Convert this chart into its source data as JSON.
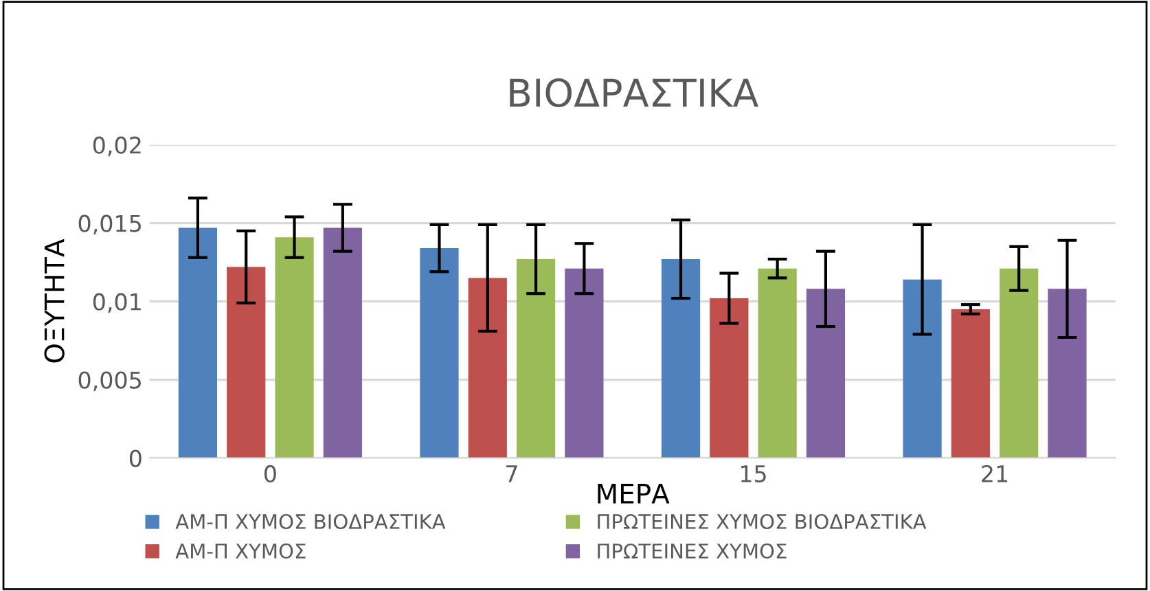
{
  "chart_data": {
    "type": "bar",
    "title": "ΒΙΟΔΡΑΣΤΙΚΑ",
    "xlabel": "ΜΕΡΑ",
    "ylabel": "ΟΞΥΤΗΤΑ",
    "categories": [
      "0",
      "7",
      "15",
      "21"
    ],
    "series": [
      {
        "name": "ΑΜ-Π ΧΥΜΟΣ ΒΙΟΔΡΑΣΤΙΚΑ",
        "color": "#4f81bd",
        "values": [
          0.0147,
          0.0134,
          0.0127,
          0.0114
        ],
        "errors": [
          0.0019,
          0.0015,
          0.0025,
          0.0035
        ]
      },
      {
        "name": "ΑΜ-Π ΧΥΜΟΣ",
        "color": "#c0504d",
        "values": [
          0.0122,
          0.0115,
          0.0102,
          0.0095
        ],
        "errors": [
          0.0023,
          0.0034,
          0.0016,
          0.0003
        ]
      },
      {
        "name": "ΠΡΩΤΕΙΝΕΣ ΧΥΜΟΣ ΒΙΟΔΡΑΣΤΙΚΑ",
        "color": "#9bbb59",
        "values": [
          0.0141,
          0.0127,
          0.0121,
          0.0121
        ],
        "errors": [
          0.0013,
          0.0022,
          0.0006,
          0.0014
        ]
      },
      {
        "name": "ΠΡΩΤΕΙΝΕΣ ΧΥΜΟΣ",
        "color": "#8064a2",
        "values": [
          0.0147,
          0.0121,
          0.0108,
          0.0108
        ],
        "errors": [
          0.0015,
          0.0016,
          0.0024,
          0.0031
        ]
      }
    ],
    "ylim": [
      0,
      0.02
    ],
    "yticks": [
      0,
      {
        "value": 0.005,
        "label": "0,005"
      },
      {
        "value": 0.01,
        "label": "0,01"
      },
      {
        "value": 0.015,
        "label": "0,015"
      },
      {
        "value": 0.02,
        "label": "0,02"
      }
    ],
    "grid": "y",
    "legend": "bottom"
  }
}
